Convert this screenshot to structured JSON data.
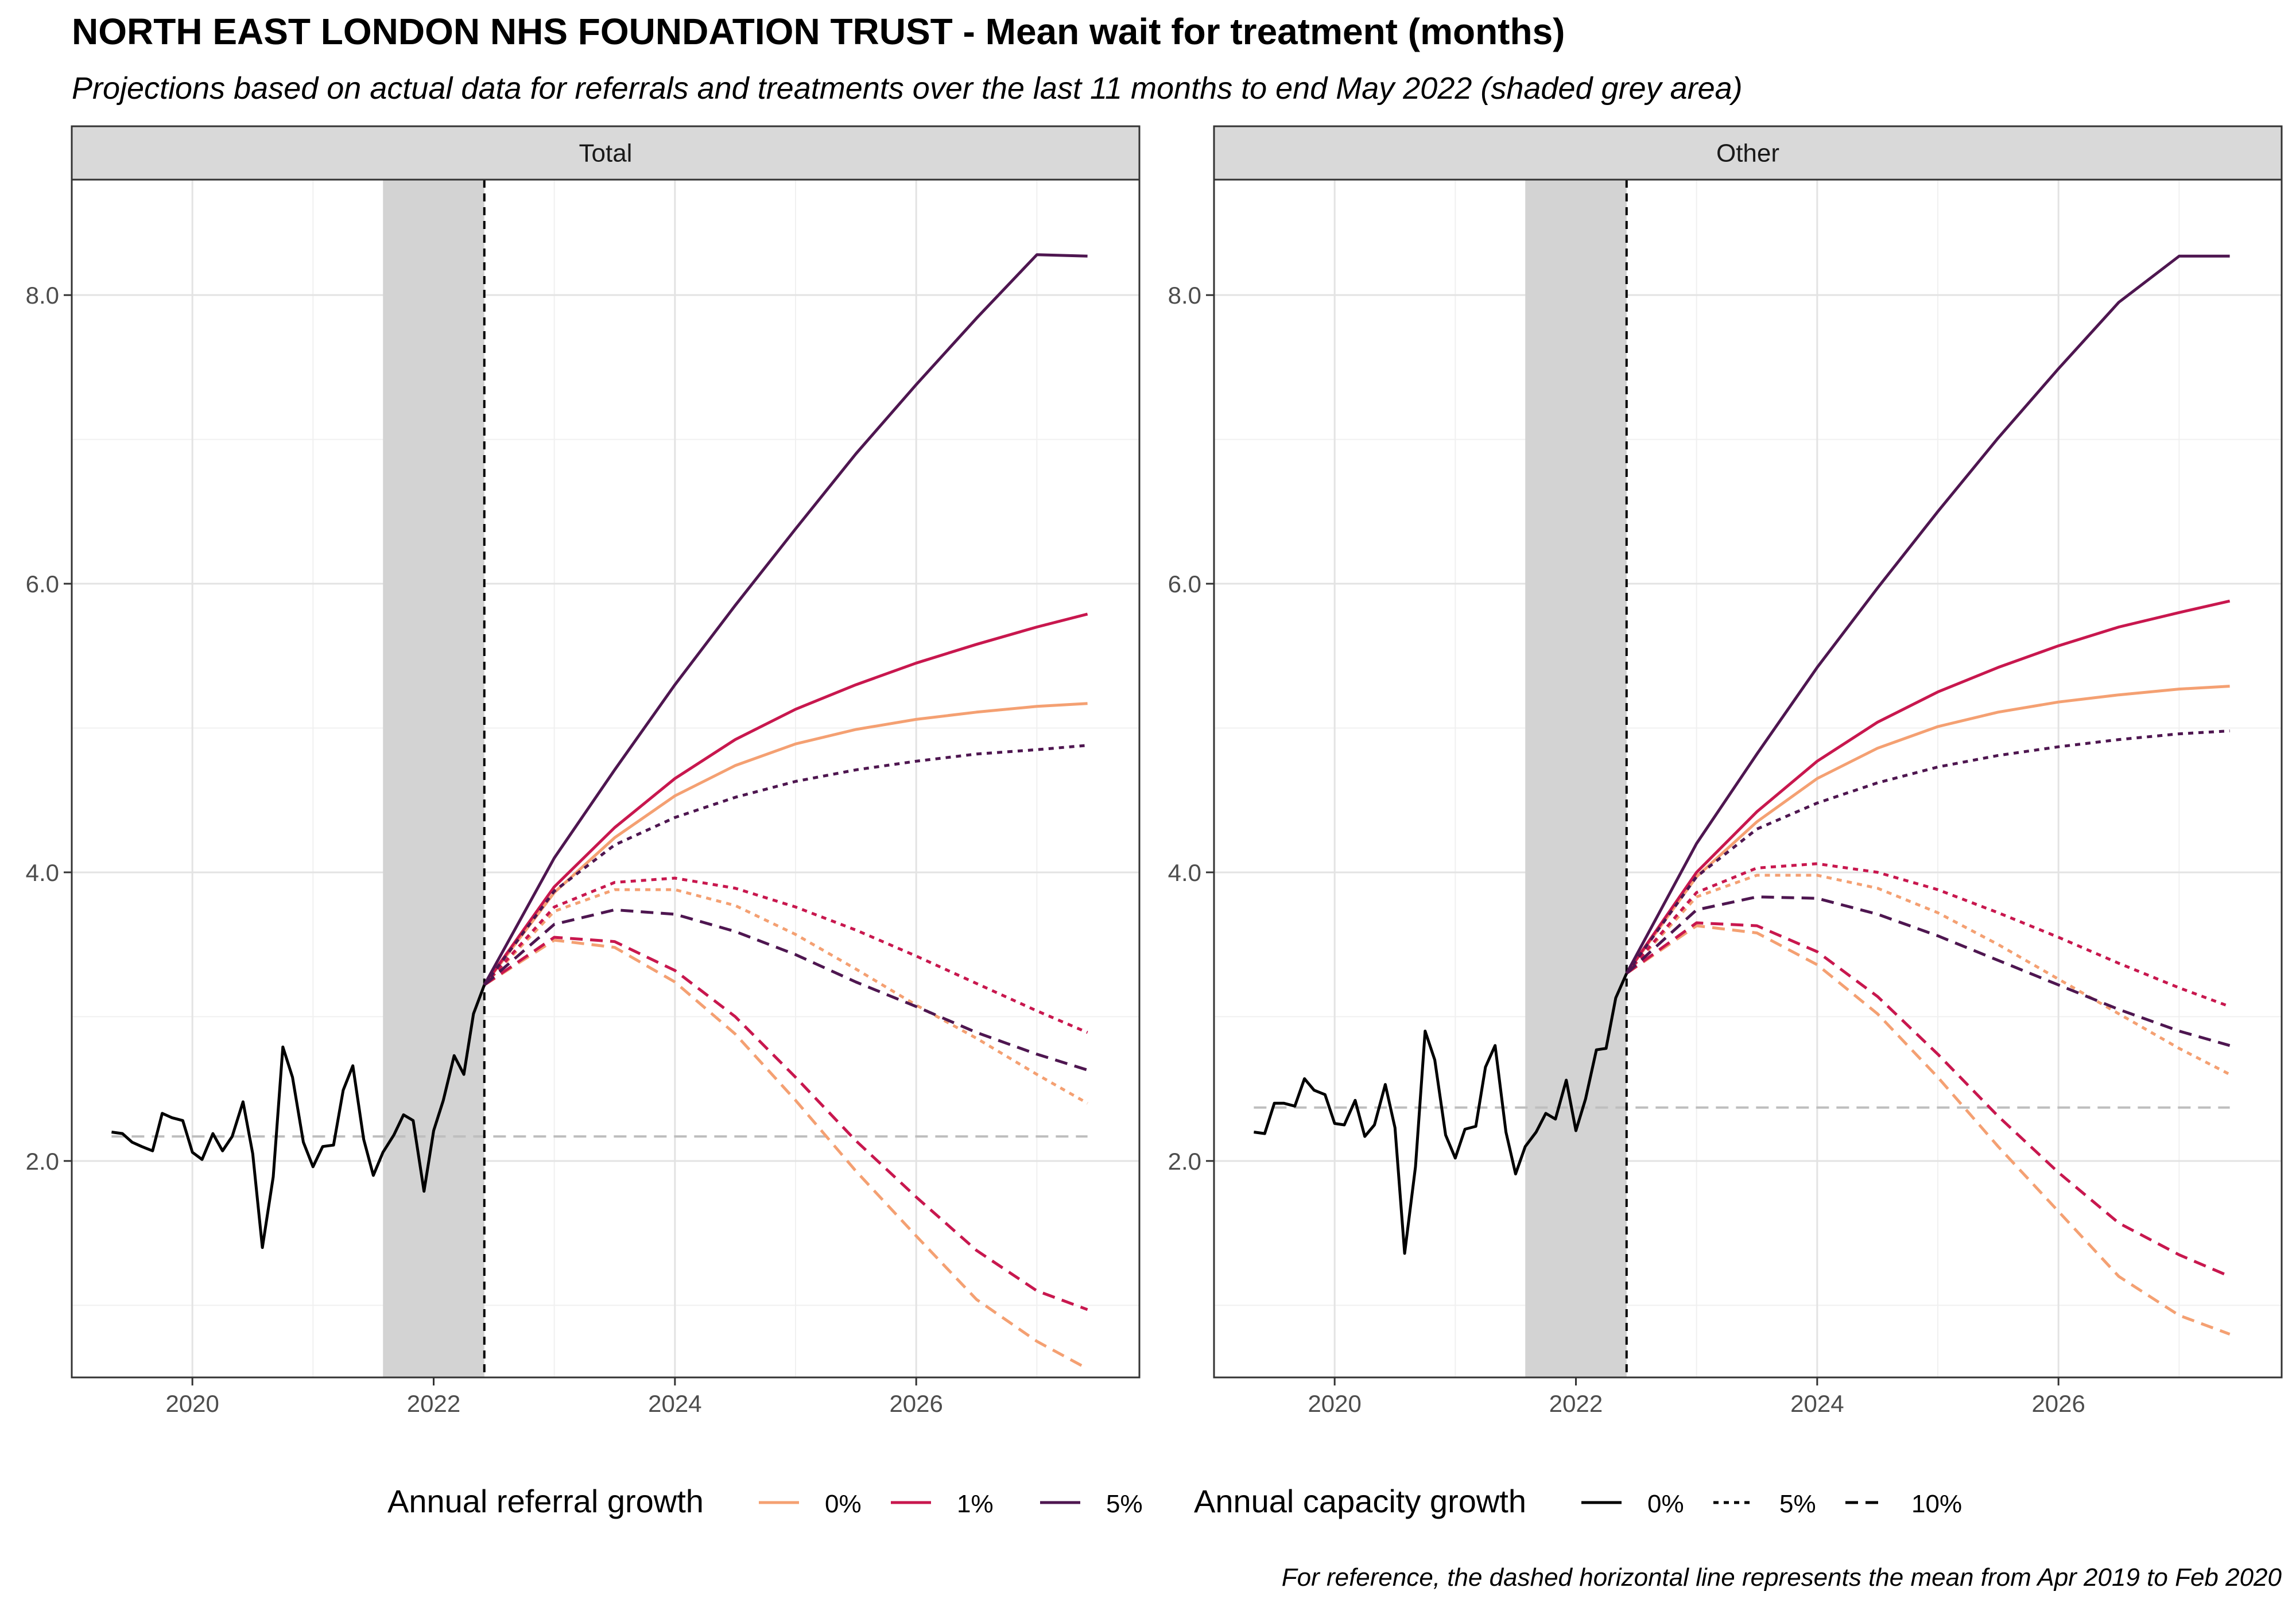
{
  "title": "NORTH EAST LONDON NHS FOUNDATION TRUST - Mean wait for treatment (months)",
  "subtitle": "Projections based on actual data for referrals and treatments over the last 11 months to end May 2022 (shaded grey area)",
  "caption": "For reference, the dashed horizontal line represents the mean from Apr 2019 to Feb 2020",
  "legend": {
    "referral_title": "Annual referral growth",
    "referral_items": [
      {
        "label": "0%",
        "color": "#F4A072"
      },
      {
        "label": "1%",
        "color": "#C8174E"
      },
      {
        "label": "5%",
        "color": "#4E1650"
      }
    ],
    "capacity_title": "Annual capacity growth",
    "capacity_items": [
      {
        "label": "0%",
        "style": "solid"
      },
      {
        "label": "5%",
        "style": "dotted"
      },
      {
        "label": "10%",
        "style": "dashed"
      }
    ]
  },
  "chart_data": {
    "type": "line",
    "facets": [
      {
        "strip": "Total",
        "xlim": [
          2019.0,
          2027.85
        ],
        "ylim": [
          0.5,
          8.8
        ],
        "x_ticks": [
          2020,
          2022,
          2024,
          2026
        ],
        "x_tick_labels": [
          "2020",
          "2022",
          "2024",
          "2026"
        ],
        "y_ticks": [
          2,
          4,
          6,
          8
        ],
        "y_tick_labels": [
          "2.0",
          "4.0",
          "6.0",
          "8.0"
        ],
        "shaded_period": [
          2021.58,
          2022.42
        ],
        "projection_start": 2022.42,
        "reference_mean": 2.17,
        "actual": {
          "x": [
            2019.33,
            2019.42,
            2019.5,
            2019.58,
            2019.67,
            2019.75,
            2019.83,
            2019.92,
            2020.0,
            2020.08,
            2020.17,
            2020.25,
            2020.33,
            2020.42,
            2020.5,
            2020.58,
            2020.67,
            2020.75,
            2020.83,
            2020.92,
            2021.0,
            2021.08,
            2021.17,
            2021.25,
            2021.33,
            2021.42,
            2021.5,
            2021.58,
            2021.67,
            2021.75,
            2021.83,
            2021.92,
            2022.0,
            2022.08,
            2022.17,
            2022.25,
            2022.33,
            2022.42
          ],
          "y": [
            2.2,
            2.19,
            2.13,
            2.1,
            2.07,
            2.33,
            2.3,
            2.28,
            2.06,
            2.01,
            2.19,
            2.07,
            2.17,
            2.41,
            2.05,
            1.4,
            1.89,
            2.79,
            2.58,
            2.13,
            1.96,
            2.1,
            2.11,
            2.49,
            2.66,
            2.15,
            1.9,
            2.06,
            2.18,
            2.32,
            2.28,
            1.79,
            2.21,
            2.42,
            2.73,
            2.6,
            3.02,
            3.22
          ]
        },
        "projections": {
          "x": [
            2022.42,
            2023.0,
            2023.5,
            2024.0,
            2024.5,
            2025.0,
            2025.5,
            2026.0,
            2026.5,
            2027.0,
            2027.42
          ],
          "series": [
            {
              "referral": "0%",
              "capacity": "0%",
              "y": [
                3.22,
                3.86,
                4.24,
                4.53,
                4.74,
                4.89,
                4.99,
                5.06,
                5.11,
                5.15,
                5.17
              ]
            },
            {
              "referral": "1%",
              "capacity": "0%",
              "y": [
                3.22,
                3.9,
                4.31,
                4.65,
                4.92,
                5.13,
                5.3,
                5.45,
                5.58,
                5.7,
                5.79
              ]
            },
            {
              "referral": "5%",
              "capacity": "0%",
              "y": [
                3.22,
                4.1,
                4.71,
                5.3,
                5.85,
                6.38,
                6.9,
                7.38,
                7.84,
                8.28,
                8.27
              ]
            },
            {
              "referral": "0%",
              "capacity": "5%",
              "y": [
                3.22,
                3.73,
                3.88,
                3.88,
                3.77,
                3.57,
                3.33,
                3.08,
                2.85,
                2.6,
                2.4
              ]
            },
            {
              "referral": "1%",
              "capacity": "5%",
              "y": [
                3.22,
                3.76,
                3.93,
                3.96,
                3.89,
                3.76,
                3.6,
                3.42,
                3.23,
                3.04,
                2.89
              ]
            },
            {
              "referral": "5%",
              "capacity": "5%",
              "y": [
                3.22,
                3.87,
                4.19,
                4.38,
                4.52,
                4.63,
                4.71,
                4.77,
                4.82,
                4.85,
                4.88
              ]
            },
            {
              "referral": "0%",
              "capacity": "10%",
              "y": [
                3.22,
                3.53,
                3.48,
                3.24,
                2.88,
                2.42,
                1.93,
                1.48,
                1.04,
                0.75,
                0.56
              ]
            },
            {
              "referral": "1%",
              "capacity": "10%",
              "y": [
                3.22,
                3.55,
                3.52,
                3.32,
                3.0,
                2.58,
                2.14,
                1.75,
                1.38,
                1.1,
                0.97
              ]
            },
            {
              "referral": "5%",
              "capacity": "10%",
              "y": [
                3.22,
                3.64,
                3.74,
                3.71,
                3.59,
                3.43,
                3.24,
                3.07,
                2.89,
                2.74,
                2.63
              ]
            }
          ]
        }
      },
      {
        "strip": "Other",
        "xlim": [
          2019.0,
          2027.85
        ],
        "ylim": [
          0.5,
          8.8
        ],
        "x_ticks": [
          2020,
          2022,
          2024,
          2026
        ],
        "x_tick_labels": [
          "2020",
          "2022",
          "2024",
          "2026"
        ],
        "y_ticks": [
          2,
          4,
          6,
          8
        ],
        "y_tick_labels": [
          "2.0",
          "4.0",
          "6.0",
          "8.0"
        ],
        "shaded_period": [
          2021.58,
          2022.42
        ],
        "projection_start": 2022.42,
        "reference_mean": 2.37,
        "actual": {
          "x": [
            2019.33,
            2019.42,
            2019.5,
            2019.58,
            2019.67,
            2019.75,
            2019.83,
            2019.92,
            2020.0,
            2020.08,
            2020.17,
            2020.25,
            2020.33,
            2020.42,
            2020.5,
            2020.58,
            2020.67,
            2020.75,
            2020.83,
            2020.92,
            2021.0,
            2021.08,
            2021.17,
            2021.25,
            2021.33,
            2021.42,
            2021.5,
            2021.58,
            2021.67,
            2021.75,
            2021.83,
            2021.92,
            2022.0,
            2022.08,
            2022.17,
            2022.25,
            2022.33,
            2022.42
          ],
          "y": [
            2.2,
            2.19,
            2.4,
            2.4,
            2.38,
            2.57,
            2.49,
            2.46,
            2.26,
            2.25,
            2.42,
            2.17,
            2.25,
            2.53,
            2.23,
            1.36,
            1.96,
            2.9,
            2.7,
            2.18,
            2.02,
            2.22,
            2.24,
            2.65,
            2.8,
            2.2,
            1.91,
            2.1,
            2.2,
            2.33,
            2.29,
            2.56,
            2.21,
            2.43,
            2.77,
            2.78,
            3.13,
            3.3
          ]
        },
        "projections": {
          "x": [
            2022.42,
            2023.0,
            2023.5,
            2024.0,
            2024.5,
            2025.0,
            2025.5,
            2026.0,
            2026.5,
            2027.0,
            2027.42
          ],
          "series": [
            {
              "referral": "0%",
              "capacity": "0%",
              "y": [
                3.3,
                3.97,
                4.35,
                4.65,
                4.86,
                5.01,
                5.11,
                5.18,
                5.23,
                5.27,
                5.29
              ]
            },
            {
              "referral": "1%",
              "capacity": "0%",
              "y": [
                3.3,
                4.0,
                4.42,
                4.77,
                5.04,
                5.25,
                5.42,
                5.57,
                5.7,
                5.8,
                5.88
              ]
            },
            {
              "referral": "5%",
              "capacity": "0%",
              "y": [
                3.3,
                4.2,
                4.82,
                5.42,
                5.97,
                6.5,
                7.01,
                7.49,
                7.95,
                8.27,
                8.27
              ]
            },
            {
              "referral": "0%",
              "capacity": "5%",
              "y": [
                3.3,
                3.83,
                3.98,
                3.98,
                3.89,
                3.72,
                3.5,
                3.26,
                3.02,
                2.78,
                2.6
              ]
            },
            {
              "referral": "1%",
              "capacity": "5%",
              "y": [
                3.3,
                3.86,
                4.03,
                4.06,
                4.0,
                3.88,
                3.72,
                3.55,
                3.37,
                3.2,
                3.07
              ]
            },
            {
              "referral": "5%",
              "capacity": "5%",
              "y": [
                3.3,
                3.97,
                4.3,
                4.48,
                4.62,
                4.73,
                4.81,
                4.87,
                4.92,
                4.96,
                4.98
              ]
            },
            {
              "referral": "0%",
              "capacity": "10%",
              "y": [
                3.3,
                3.63,
                3.58,
                3.36,
                3.02,
                2.58,
                2.1,
                1.65,
                1.2,
                0.93,
                0.8
              ]
            },
            {
              "referral": "1%",
              "capacity": "10%",
              "y": [
                3.3,
                3.65,
                3.63,
                3.45,
                3.14,
                2.74,
                2.31,
                1.92,
                1.57,
                1.35,
                1.2
              ]
            },
            {
              "referral": "5%",
              "capacity": "10%",
              "y": [
                3.3,
                3.74,
                3.83,
                3.82,
                3.71,
                3.56,
                3.39,
                3.22,
                3.05,
                2.9,
                2.8
              ]
            }
          ]
        }
      }
    ]
  }
}
